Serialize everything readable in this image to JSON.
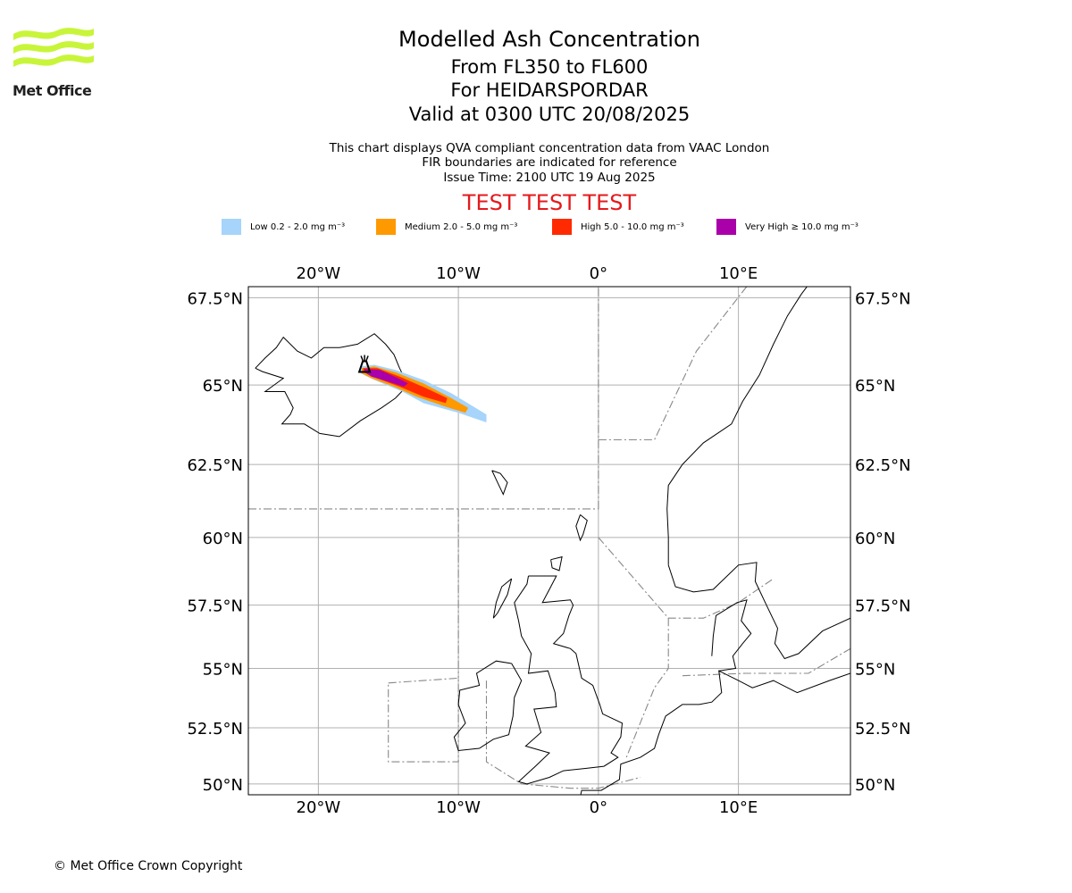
{
  "logo": {
    "text": "Met Office"
  },
  "header": {
    "title": "Modelled Ash Concentration",
    "flight_levels": "From FL350 to FL600",
    "volcano": "For HEIDARSPORDAR",
    "valid": "Valid at 0300 UTC 20/08/2025",
    "info_line_1": "This chart displays QVA compliant concentration data from VAAC London",
    "info_line_2": "FIR boundaries are indicated for reference",
    "issue_time": "Issue Time: 2100 UTC 19 Aug 2025",
    "test_banner": "TEST TEST TEST"
  },
  "legend": [
    {
      "label": "Low 0.2 - 2.0 mg m⁻³",
      "color": "#a6d4fa"
    },
    {
      "label": "Medium 2.0 - 5.0 mg m⁻³",
      "color": "#ff9900"
    },
    {
      "label": "High 5.0 - 10.0 mg m⁻³",
      "color": "#ff2a00"
    },
    {
      "label": "Very High ≥ 10.0 mg m⁻³",
      "color": "#aa00aa"
    }
  ],
  "map": {
    "lon_range": [
      -25,
      18
    ],
    "lat_range": [
      49.5,
      67.8
    ],
    "lon_ticks": [
      {
        "lon": -20,
        "label": "20°W"
      },
      {
        "lon": -10,
        "label": "10°W"
      },
      {
        "lon": 0,
        "label": "0°"
      },
      {
        "lon": 10,
        "label": "10°E"
      }
    ],
    "lat_ticks": [
      {
        "lat": 67.5,
        "label": "67.5°N"
      },
      {
        "lat": 65,
        "label": "65°N"
      },
      {
        "lat": 62.5,
        "label": "62.5°N"
      },
      {
        "lat": 60,
        "label": "60°N"
      },
      {
        "lat": 57.5,
        "label": "57.5°N"
      },
      {
        "lat": 55,
        "label": "55°N"
      },
      {
        "lat": 52.5,
        "label": "52.5°N"
      },
      {
        "lat": 50,
        "label": "50°N"
      }
    ],
    "volcano_location": {
      "lon": -16.7,
      "lat": 65.6
    },
    "ash_plume": {
      "low": [
        [
          -17,
          65.55
        ],
        [
          -16,
          65.6
        ],
        [
          -14.5,
          65.45
        ],
        [
          -12.5,
          65.15
        ],
        [
          -10.5,
          64.75
        ],
        [
          -8,
          64.1
        ],
        [
          -8,
          63.85
        ],
        [
          -10,
          64.15
        ],
        [
          -12.5,
          64.45
        ],
        [
          -14,
          64.8
        ],
        [
          -16,
          65.15
        ],
        [
          -17,
          65.35
        ]
      ],
      "medium": [
        [
          -16.9,
          65.5
        ],
        [
          -16,
          65.55
        ],
        [
          -14.5,
          65.38
        ],
        [
          -12.5,
          65.05
        ],
        [
          -10.5,
          64.6
        ],
        [
          -9.3,
          64.3
        ],
        [
          -9.5,
          64.15
        ],
        [
          -11,
          64.35
        ],
        [
          -13,
          64.65
        ],
        [
          -14.6,
          64.95
        ],
        [
          -16.2,
          65.2
        ],
        [
          -16.9,
          65.35
        ]
      ],
      "high": [
        [
          -16.8,
          65.5
        ],
        [
          -15.8,
          65.5
        ],
        [
          -14.2,
          65.25
        ],
        [
          -12.3,
          64.9
        ],
        [
          -10.8,
          64.6
        ],
        [
          -10.9,
          64.45
        ],
        [
          -12.5,
          64.65
        ],
        [
          -14.2,
          64.95
        ],
        [
          -15.8,
          65.2
        ],
        [
          -16.8,
          65.4
        ]
      ],
      "very_high": [
        [
          -16.7,
          65.48
        ],
        [
          -15.6,
          65.45
        ],
        [
          -14.3,
          65.2
        ],
        [
          -13.6,
          65.05
        ],
        [
          -13.9,
          64.95
        ],
        [
          -15,
          65.1
        ],
        [
          -16.2,
          65.25
        ],
        [
          -16.7,
          65.38
        ]
      ]
    }
  },
  "copyright": "© Met Office Crown Copyright"
}
